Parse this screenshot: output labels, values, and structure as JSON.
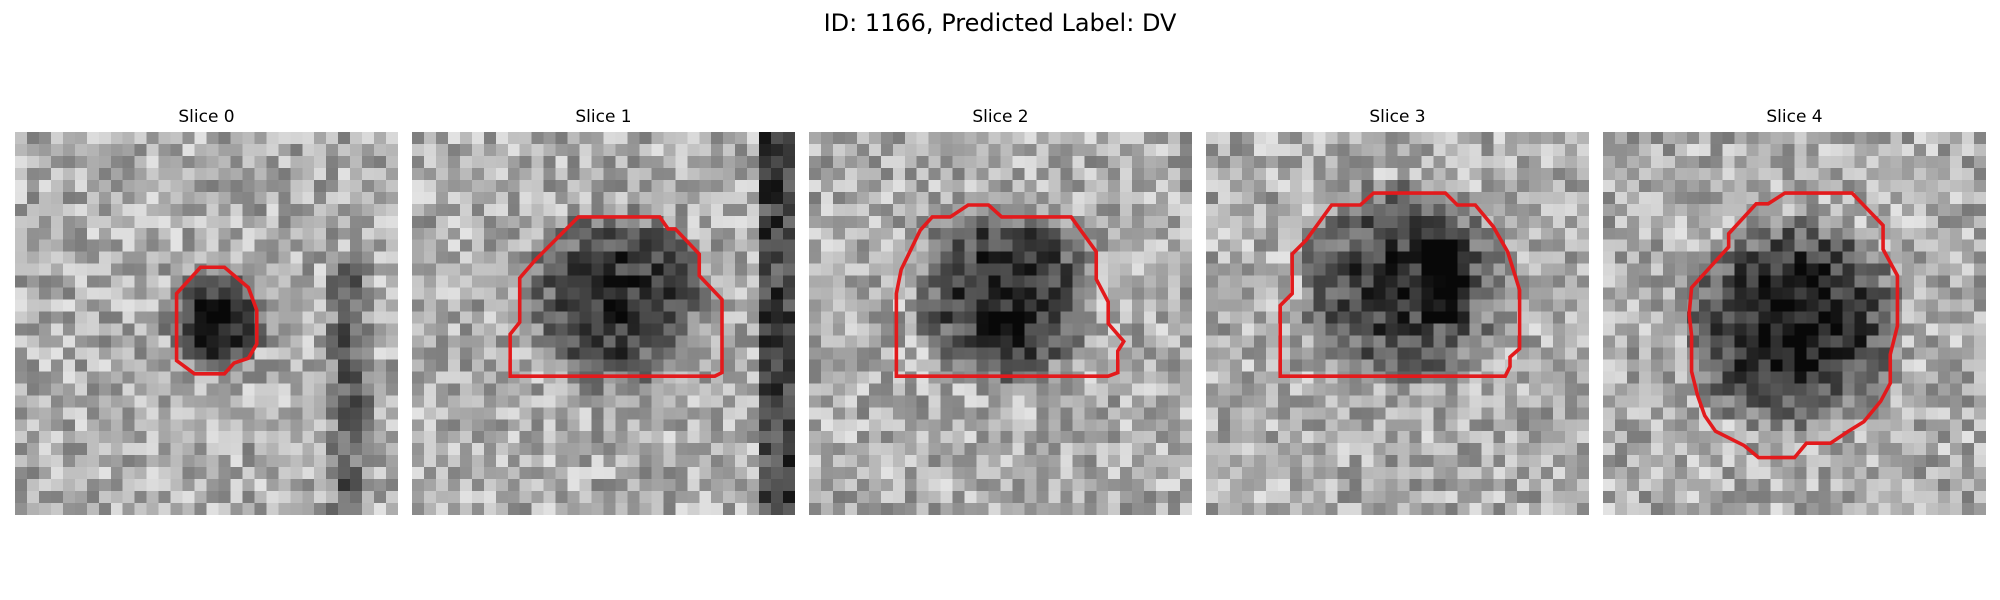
{
  "figure": {
    "title": "ID: 1166, Predicted Label: DV"
  },
  "panels": [
    {
      "title": "Slice 0",
      "image_kind": "grayscale-mri-patch",
      "overlay_color": "#e31a1c"
    },
    {
      "title": "Slice 1",
      "image_kind": "grayscale-mri-patch",
      "overlay_color": "#e31a1c"
    },
    {
      "title": "Slice 2",
      "image_kind": "grayscale-mri-patch",
      "overlay_color": "#e31a1c"
    },
    {
      "title": "Slice 3",
      "image_kind": "grayscale-mri-patch",
      "overlay_color": "#e31a1c"
    },
    {
      "title": "Slice 4",
      "image_kind": "grayscale-mri-patch",
      "overlay_color": "#e31a1c"
    }
  ]
}
